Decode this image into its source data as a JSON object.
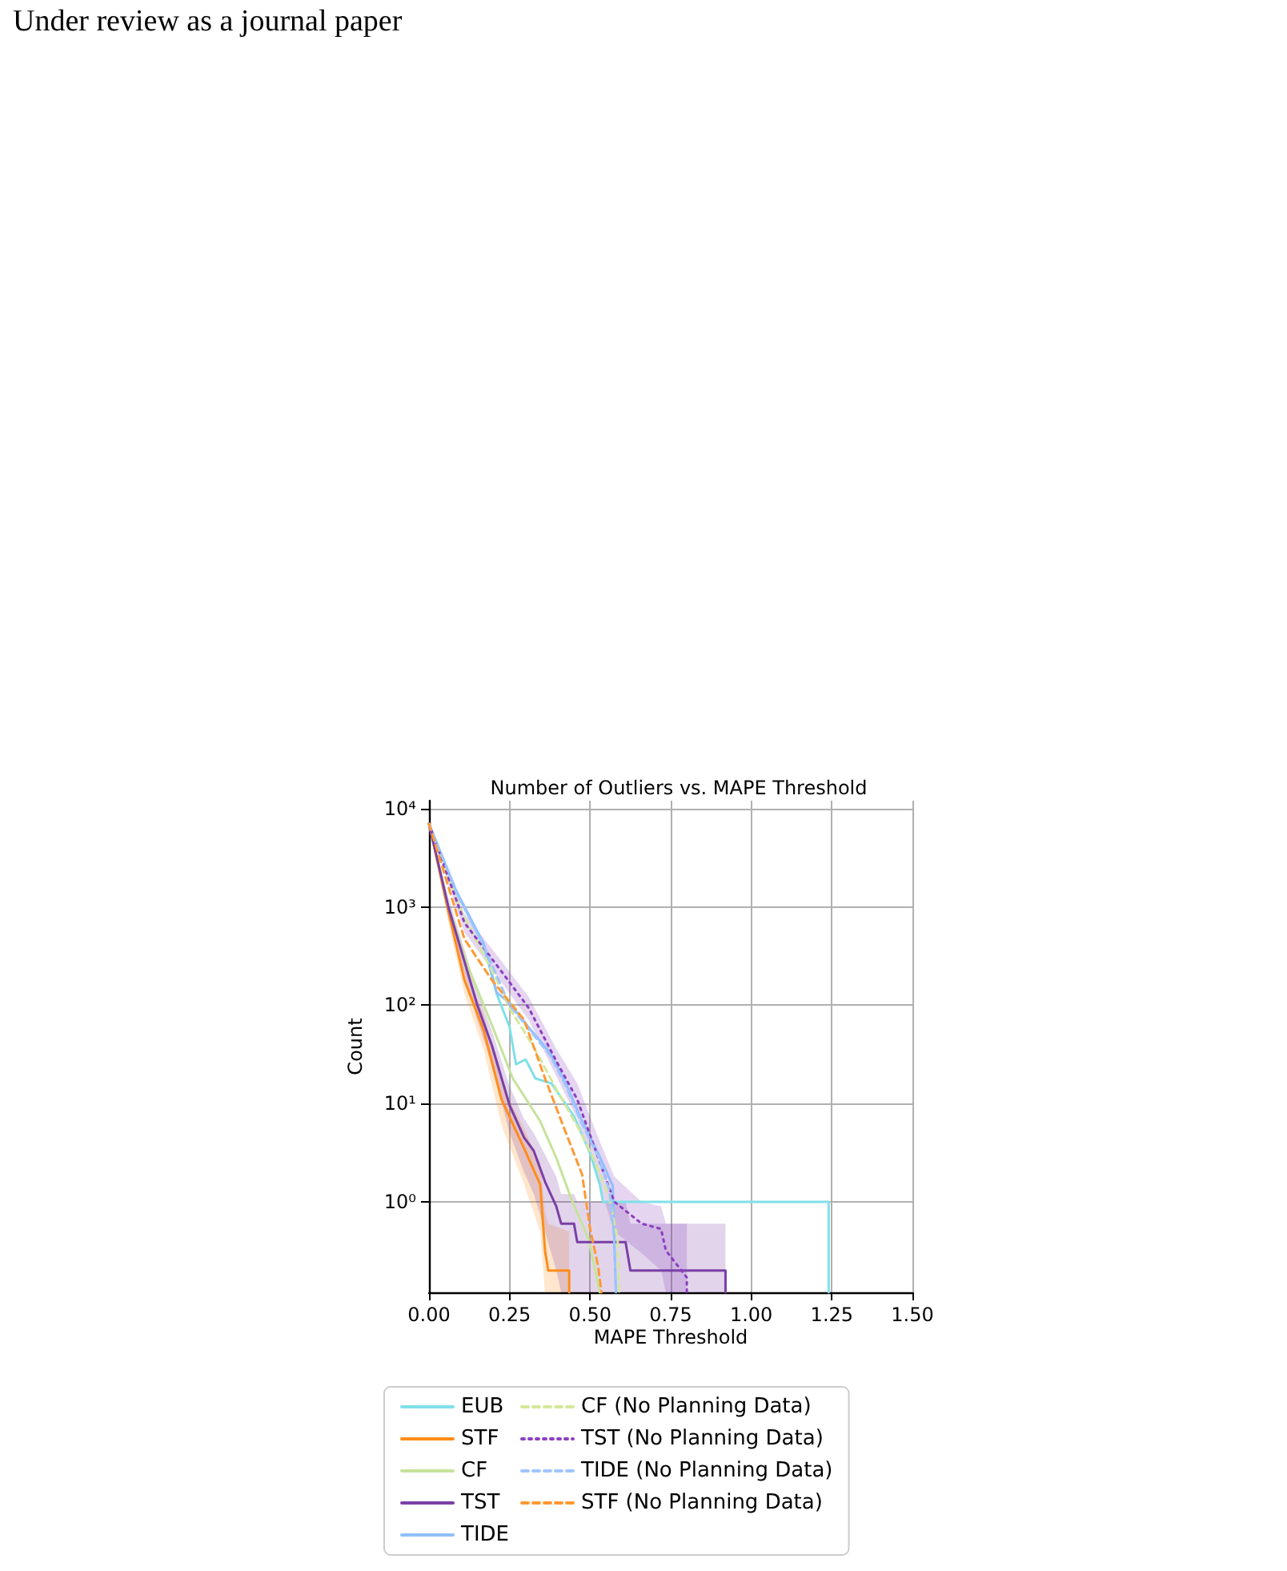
{
  "chart_data": {
    "type": "line",
    "title": "Number of Outliers vs. MAPE Threshold",
    "xlabel": "MAPE Threshold",
    "ylabel": "Count",
    "annotations": [
      "Under review as a journal paper"
    ],
    "log": "y",
    "grid": true,
    "legend": "bottom",
    "marker": "none",
    "xlim": [
      0,
      1.5
    ],
    "xticks": [
      {
        "value": 0,
        "label": "0.00"
      },
      {
        "value": 0.25,
        "label": "0.25"
      },
      {
        "value": 0.5,
        "label": "0.50"
      },
      {
        "value": 0.75,
        "label": "0.75"
      },
      {
        "value": 1,
        "label": "1.00"
      },
      {
        "value": 1.25,
        "label": "1.25"
      },
      {
        "value": 1.5,
        "label": "1.50"
      }
    ],
    "ylim": [
      0.12,
      12000
    ],
    "yticks": [
      {
        "value": 1,
        "label": "10⁰"
      },
      {
        "value": 10,
        "label": "10¹"
      },
      {
        "value": 100,
        "label": "10²"
      },
      {
        "value": 1000,
        "label": "10³"
      },
      {
        "value": 10000,
        "label": "10⁴"
      }
    ],
    "series": [
      {
        "name": "EUB",
        "color": "#80e0e8",
        "line_style": "solid",
        "x": [
          0,
          0.085,
          0.17,
          0.21,
          0.25,
          0.27,
          0.3,
          0.33,
          0.38,
          0.45,
          0.5,
          0.53,
          0.54,
          1.24,
          1.24
        ],
        "values": [
          7000,
          1400,
          400,
          130,
          60,
          25,
          28,
          18,
          16,
          7.4,
          3.1,
          1.5,
          1,
          1,
          0.12
        ]
      },
      {
        "name": "STF",
        "color": "#ff8c1a",
        "line_style": "solid",
        "x": [
          0,
          0.06,
          0.11,
          0.17,
          0.225,
          0.295,
          0.345,
          0.36,
          0.37,
          0.435,
          0.435
        ],
        "values": [
          7000,
          900,
          180,
          55,
          11,
          3.5,
          1.5,
          0.32,
          0.2,
          0.2,
          0.12
        ],
        "lower": [
          7000,
          700,
          130,
          35,
          6,
          1.5,
          0.5,
          0.12,
          0.12,
          0.12,
          0.12
        ],
        "upper": [
          7000,
          1100,
          240,
          80,
          16,
          5.5,
          2.5,
          0.8,
          0.6,
          0.5,
          0.12
        ]
      },
      {
        "name": "CF",
        "color": "#c5e39a",
        "line_style": "solid",
        "x": [
          0,
          0.06,
          0.12,
          0.195,
          0.26,
          0.345,
          0.395,
          0.445,
          0.495,
          0.53
        ],
        "values": [
          7000,
          1000,
          250,
          63,
          18,
          6.6,
          2.8,
          1,
          0.42,
          0.12
        ]
      },
      {
        "name": "TST",
        "color": "#7b3fa6",
        "line_style": "solid",
        "x": [
          0,
          0.06,
          0.15,
          0.195,
          0.25,
          0.295,
          0.325,
          0.36,
          0.395,
          0.41,
          0.45,
          0.46,
          0.61,
          0.625,
          0.92,
          0.92
        ],
        "values": [
          7000,
          1000,
          100,
          39,
          9.6,
          4.5,
          3.3,
          1.6,
          0.9,
          0.6,
          0.6,
          0.39,
          0.39,
          0.2,
          0.2,
          0.12
        ],
        "lower": [
          7000,
          800,
          70,
          25,
          5,
          2,
          1.2,
          0.5,
          0.2,
          0.12,
          0.12,
          0.12,
          0.12,
          0.12,
          0.12,
          0.12
        ],
        "upper": [
          7000,
          1250,
          140,
          55,
          15,
          7,
          5,
          3,
          1.8,
          1.2,
          1.2,
          1,
          1,
          0.6,
          0.6,
          0.12
        ]
      },
      {
        "name": "TIDE",
        "color": "#8ec0ff",
        "line_style": "solid",
        "x": [
          0,
          0.085,
          0.17,
          0.21,
          0.25,
          0.31,
          0.375,
          0.425,
          0.475,
          0.525,
          0.57,
          0.575,
          0.58
        ],
        "values": [
          7000,
          1450,
          420,
          135,
          105,
          59,
          33,
          16,
          6.6,
          3.1,
          1.46,
          0.39,
          0.12
        ]
      },
      {
        "name": "CF (No Planning Data)",
        "color": "#d4e89a",
        "line_style": "dashed",
        "x": [
          0,
          0.1,
          0.21,
          0.25,
          0.32,
          0.395,
          0.46,
          0.51,
          0.56,
          0.585,
          0.59
        ],
        "values": [
          7000,
          900,
          180,
          93,
          40,
          14,
          5.9,
          2.8,
          1.1,
          0.42,
          0.12
        ]
      },
      {
        "name": "TST (No Planning Data)",
        "color": "#8a3fc0",
        "line_style": "dotted",
        "x": [
          0,
          0.11,
          0.225,
          0.31,
          0.395,
          0.46,
          0.525,
          0.575,
          0.66,
          0.72,
          0.735,
          0.8,
          0.8
        ],
        "values": [
          7000,
          690,
          220,
          93,
          27,
          11,
          2.8,
          1,
          0.6,
          0.53,
          0.32,
          0.17,
          0.12
        ],
        "lower": [
          7000,
          550,
          170,
          70,
          19,
          7,
          1.6,
          0.5,
          0.3,
          0.2,
          0.12,
          0.12,
          0.12
        ],
        "upper": [
          7000,
          850,
          280,
          120,
          36,
          16,
          4.5,
          1.8,
          1,
          0.9,
          0.6,
          0.6,
          0.12
        ]
      },
      {
        "name": "TIDE (No Planning Data)",
        "color": "#a0c4ff",
        "line_style": "dashed",
        "x": [
          0,
          0.085,
          0.17,
          0.25,
          0.31,
          0.375,
          0.425,
          0.475,
          0.525,
          0.56,
          0.575,
          0.58
        ],
        "values": [
          7000,
          1400,
          400,
          100,
          57,
          31,
          15,
          6.2,
          2.9,
          1.3,
          0.4,
          0.12
        ]
      },
      {
        "name": "STF (No Planning Data)",
        "color": "#ff9933",
        "line_style": "dashed",
        "x": [
          0,
          0.11,
          0.195,
          0.295,
          0.36,
          0.425,
          0.475,
          0.5,
          0.525,
          0.535
        ],
        "values": [
          7000,
          470,
          180,
          71,
          18,
          5,
          1.9,
          0.53,
          0.22,
          0.12
        ]
      }
    ]
  }
}
